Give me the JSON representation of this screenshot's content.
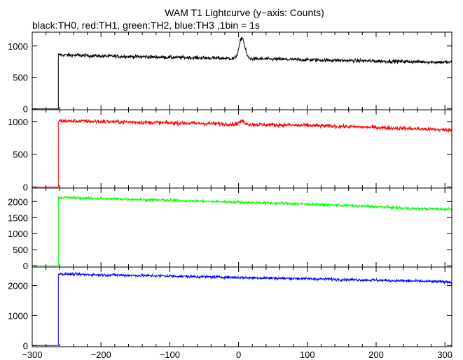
{
  "chart_data": {
    "type": "line",
    "title": "WAM T1 Lightcurve (y−axis: Counts)",
    "subtitle": "black:TH0, red:TH1, green:TH2, blue:TH3 ,1bin = 1s",
    "xlabel": "",
    "ylabel": "",
    "xlim": [
      -300,
      310
    ],
    "x_ticks": [
      -300,
      -200,
      -100,
      0,
      100,
      200,
      300
    ],
    "trigger_onset_x": -262,
    "bin_seconds": 1,
    "grid": false,
    "legend": "none",
    "panels": [
      {
        "name": "TH0",
        "color": "#000000",
        "ylim": [
          -15,
          1220
        ],
        "y_ticks": [
          0,
          500,
          1000
        ],
        "pre_trigger_level": 0,
        "trend": [
          [
            -262,
            860
          ],
          [
            -200,
            840
          ],
          [
            -100,
            820
          ],
          [
            0,
            800
          ],
          [
            100,
            780
          ],
          [
            200,
            760
          ],
          [
            310,
            740
          ]
        ],
        "peaks": [
          {
            "x": 5,
            "height": 330,
            "width": 4
          }
        ],
        "noise": 28
      },
      {
        "name": "TH1",
        "color": "#ff0000",
        "ylim": [
          -15,
          1180
        ],
        "y_ticks": [
          0,
          500,
          1000
        ],
        "pre_trigger_level": 0,
        "trend": [
          [
            -262,
            1010
          ],
          [
            -200,
            1000
          ],
          [
            -100,
            980
          ],
          [
            0,
            960
          ],
          [
            100,
            940
          ],
          [
            200,
            910
          ],
          [
            310,
            870
          ]
        ],
        "peaks": [
          {
            "x": 5,
            "height": 45,
            "width": 4
          }
        ],
        "noise": 30
      },
      {
        "name": "TH2",
        "color": "#00ff00",
        "ylim": [
          -40,
          2420
        ],
        "y_ticks": [
          0,
          500,
          1000,
          1500,
          2000
        ],
        "pre_trigger_level": 0,
        "trend": [
          [
            -262,
            2130
          ],
          [
            -200,
            2090
          ],
          [
            -100,
            2040
          ],
          [
            0,
            1980
          ],
          [
            100,
            1920
          ],
          [
            200,
            1840
          ],
          [
            250,
            1780
          ],
          [
            310,
            1760
          ]
        ],
        "peaks": [],
        "noise": 45
      },
      {
        "name": "TH3",
        "color": "#0000ff",
        "ylim": [
          -40,
          2620
        ],
        "y_ticks": [
          0,
          1000,
          2000
        ],
        "pre_trigger_level": 0,
        "trend": [
          [
            -262,
            2390
          ],
          [
            -200,
            2360
          ],
          [
            -100,
            2320
          ],
          [
            0,
            2270
          ],
          [
            100,
            2230
          ],
          [
            200,
            2180
          ],
          [
            310,
            2120
          ]
        ],
        "peaks": [],
        "noise": 45
      }
    ]
  }
}
